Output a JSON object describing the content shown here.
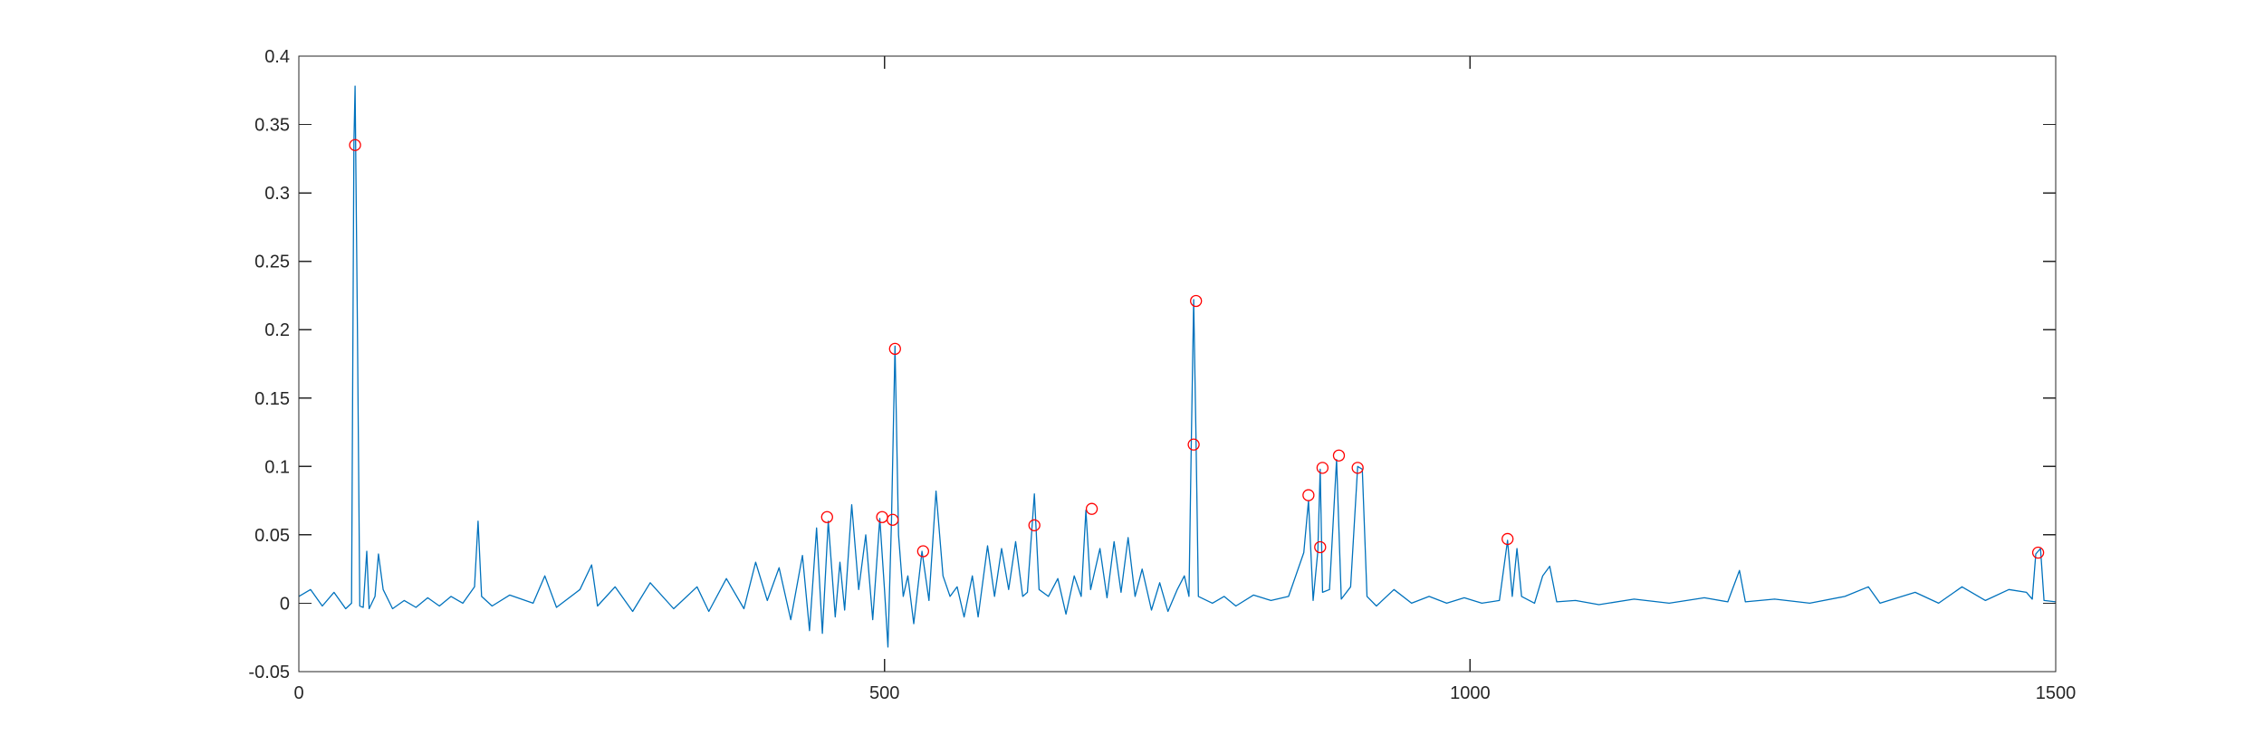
{
  "chart_data": {
    "type": "line",
    "title": "",
    "xlabel": "",
    "ylabel": "",
    "xlim": [
      0,
      1500
    ],
    "ylim": [
      -0.05,
      0.4
    ],
    "grid": false,
    "xticks": [
      0,
      500,
      1000,
      1500
    ],
    "xtick_labels": [
      "0",
      "500",
      "1000",
      "1500"
    ],
    "yticks": [
      -0.05,
      0,
      0.05,
      0.1,
      0.15,
      0.2,
      0.25,
      0.3,
      0.35,
      0.4
    ],
    "ytick_labels": [
      "-0.05",
      "0",
      "0.05",
      "0.1",
      "0.15",
      "0.2",
      "0.25",
      "0.3",
      "0.35",
      "0.4"
    ],
    "series": [
      {
        "type": "line",
        "color": "#0072BD",
        "points": [
          [
            0,
            0.005
          ],
          [
            10,
            0.01
          ],
          [
            20,
            -0.002
          ],
          [
            30,
            0.008
          ],
          [
            40,
            -0.004
          ],
          [
            45,
            0.0
          ],
          [
            47,
            0.336
          ],
          [
            48,
            0.378
          ],
          [
            50,
            0.2
          ],
          [
            52,
            -0.002
          ],
          [
            55,
            -0.003
          ],
          [
            58,
            0.038
          ],
          [
            60,
            -0.004
          ],
          [
            65,
            0.005
          ],
          [
            68,
            0.036
          ],
          [
            72,
            0.01
          ],
          [
            80,
            -0.004
          ],
          [
            90,
            0.002
          ],
          [
            100,
            -0.003
          ],
          [
            110,
            0.004
          ],
          [
            120,
            -0.002
          ],
          [
            130,
            0.005
          ],
          [
            140,
            0.0
          ],
          [
            150,
            0.012
          ],
          [
            153,
            0.06
          ],
          [
            156,
            0.005
          ],
          [
            165,
            -0.002
          ],
          [
            180,
            0.006
          ],
          [
            200,
            0.0
          ],
          [
            210,
            0.02
          ],
          [
            220,
            -0.003
          ],
          [
            240,
            0.01
          ],
          [
            250,
            0.028
          ],
          [
            255,
            -0.002
          ],
          [
            270,
            0.012
          ],
          [
            285,
            -0.006
          ],
          [
            300,
            0.015
          ],
          [
            320,
            -0.004
          ],
          [
            340,
            0.012
          ],
          [
            350,
            -0.006
          ],
          [
            365,
            0.018
          ],
          [
            380,
            -0.004
          ],
          [
            390,
            0.03
          ],
          [
            400,
            0.002
          ],
          [
            410,
            0.026
          ],
          [
            420,
            -0.012
          ],
          [
            430,
            0.035
          ],
          [
            436,
            -0.02
          ],
          [
            442,
            0.055
          ],
          [
            447,
            -0.022
          ],
          [
            452,
            0.06
          ],
          [
            458,
            -0.01
          ],
          [
            462,
            0.03
          ],
          [
            466,
            -0.005
          ],
          [
            472,
            0.072
          ],
          [
            478,
            0.01
          ],
          [
            484,
            0.05
          ],
          [
            490,
            -0.012
          ],
          [
            496,
            0.062
          ],
          [
            500,
            0.01
          ],
          [
            503,
            -0.032
          ],
          [
            506,
            0.06
          ],
          [
            509,
            0.188
          ],
          [
            512,
            0.05
          ],
          [
            516,
            0.005
          ],
          [
            520,
            0.02
          ],
          [
            525,
            -0.015
          ],
          [
            532,
            0.038
          ],
          [
            538,
            0.002
          ],
          [
            544,
            0.082
          ],
          [
            550,
            0.02
          ],
          [
            556,
            0.005
          ],
          [
            562,
            0.012
          ],
          [
            568,
            -0.01
          ],
          [
            575,
            0.02
          ],
          [
            580,
            -0.01
          ],
          [
            588,
            0.042
          ],
          [
            594,
            0.005
          ],
          [
            600,
            0.04
          ],
          [
            606,
            0.01
          ],
          [
            612,
            0.045
          ],
          [
            618,
            0.005
          ],
          [
            622,
            0.008
          ],
          [
            628,
            0.08
          ],
          [
            632,
            0.01
          ],
          [
            640,
            0.005
          ],
          [
            648,
            0.018
          ],
          [
            655,
            -0.008
          ],
          [
            662,
            0.02
          ],
          [
            668,
            0.005
          ],
          [
            672,
            0.068
          ],
          [
            676,
            0.01
          ],
          [
            684,
            0.04
          ],
          [
            690,
            0.004
          ],
          [
            696,
            0.045
          ],
          [
            702,
            0.008
          ],
          [
            708,
            0.048
          ],
          [
            714,
            0.005
          ],
          [
            720,
            0.025
          ],
          [
            728,
            -0.005
          ],
          [
            735,
            0.015
          ],
          [
            742,
            -0.006
          ],
          [
            750,
            0.01
          ],
          [
            756,
            0.02
          ],
          [
            760,
            0.005
          ],
          [
            762,
            0.118
          ],
          [
            764,
            0.222
          ],
          [
            766,
            0.12
          ],
          [
            768,
            0.005
          ],
          [
            780,
            0.0
          ],
          [
            790,
            0.005
          ],
          [
            800,
            -0.002
          ],
          [
            815,
            0.006
          ],
          [
            830,
            0.002
          ],
          [
            845,
            0.005
          ],
          [
            858,
            0.037
          ],
          [
            862,
            0.075
          ],
          [
            866,
            0.002
          ],
          [
            870,
            0.038
          ],
          [
            872,
            0.098
          ],
          [
            874,
            0.008
          ],
          [
            880,
            0.01
          ],
          [
            886,
            0.105
          ],
          [
            890,
            0.003
          ],
          [
            898,
            0.012
          ],
          [
            904,
            0.1
          ],
          [
            908,
            0.098
          ],
          [
            912,
            0.005
          ],
          [
            920,
            -0.002
          ],
          [
            935,
            0.01
          ],
          [
            950,
            0.0
          ],
          [
            965,
            0.005
          ],
          [
            980,
            0.0
          ],
          [
            995,
            0.004
          ],
          [
            1010,
            0.0
          ],
          [
            1025,
            0.002
          ],
          [
            1032,
            0.046
          ],
          [
            1036,
            0.005
          ],
          [
            1040,
            0.04
          ],
          [
            1044,
            0.005
          ],
          [
            1055,
            0.0
          ],
          [
            1062,
            0.02
          ],
          [
            1068,
            0.027
          ],
          [
            1074,
            0.001
          ],
          [
            1090,
            0.002
          ],
          [
            1110,
            -0.001
          ],
          [
            1140,
            0.003
          ],
          [
            1170,
            0.0
          ],
          [
            1200,
            0.004
          ],
          [
            1220,
            0.001
          ],
          [
            1230,
            0.024
          ],
          [
            1235,
            0.001
          ],
          [
            1260,
            0.003
          ],
          [
            1290,
            0.0
          ],
          [
            1320,
            0.005
          ],
          [
            1340,
            0.012
          ],
          [
            1350,
            0.0
          ],
          [
            1380,
            0.008
          ],
          [
            1400,
            0.0
          ],
          [
            1420,
            0.012
          ],
          [
            1440,
            0.002
          ],
          [
            1460,
            0.01
          ],
          [
            1475,
            0.008
          ],
          [
            1480,
            0.003
          ],
          [
            1483,
            0.036
          ],
          [
            1487,
            0.04
          ],
          [
            1490,
            0.002
          ],
          [
            1500,
            0.001
          ]
        ]
      },
      {
        "type": "scatter",
        "marker": "circle-open",
        "color": "#FF0000",
        "points": [
          [
            48,
            0.335
          ],
          [
            451,
            0.063
          ],
          [
            498,
            0.063
          ],
          [
            507,
            0.061
          ],
          [
            509,
            0.186
          ],
          [
            533,
            0.038
          ],
          [
            628,
            0.057
          ],
          [
            677,
            0.069
          ],
          [
            764,
            0.116
          ],
          [
            766,
            0.221
          ],
          [
            862,
            0.079
          ],
          [
            872,
            0.041
          ],
          [
            874,
            0.099
          ],
          [
            888,
            0.108
          ],
          [
            904,
            0.099
          ],
          [
            1032,
            0.047
          ],
          [
            1485,
            0.037
          ]
        ]
      }
    ]
  }
}
